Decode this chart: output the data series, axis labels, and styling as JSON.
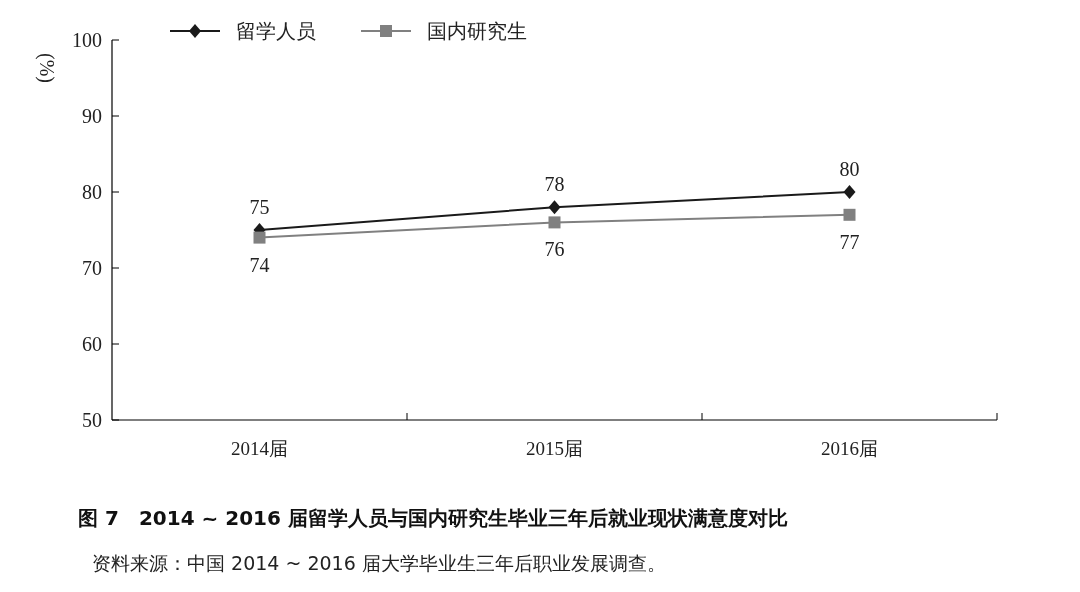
{
  "chart_data": {
    "type": "line",
    "title": "图 7　2014 ~ 2016 届留学人员与国内研究生毕业三年后就业现状满意度对比",
    "ylabel": "(%)",
    "categories": [
      "2014届",
      "2015届",
      "2016届"
    ],
    "series": [
      {
        "name": "留学人员",
        "color": "#1a1a1a",
        "marker": "diamond",
        "values": [
          75,
          78,
          80
        ]
      },
      {
        "name": "国内研究生",
        "color": "#808080",
        "marker": "square",
        "values": [
          74,
          76,
          77
        ]
      }
    ],
    "ylim": [
      50,
      100
    ],
    "yticks": [
      50,
      60,
      70,
      80,
      90,
      100
    ],
    "data_labels": true,
    "legend": "top",
    "grid": false,
    "line_style": "solid",
    "annotations": [
      "资料来源：中国 2014 ~ 2016 届大学毕业生三年后职业发展调查。"
    ]
  }
}
